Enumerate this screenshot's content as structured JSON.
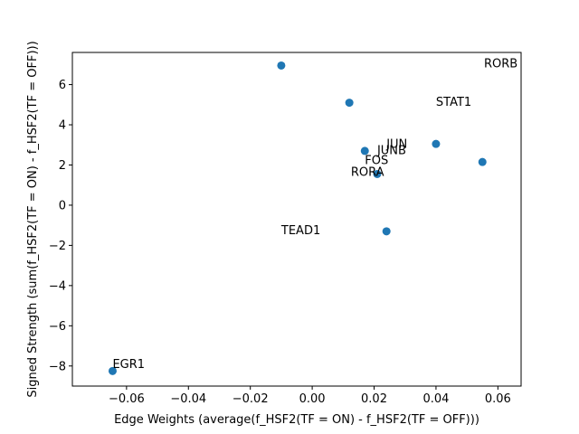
{
  "chart_data": {
    "type": "scatter",
    "title": "",
    "xlabel": "Edge Weights (average(f_HSF2(TF = ON) - f_HSF2(TF = OFF)))",
    "ylabel": "Signed Strength (sum(f_HSF2(TF = ON) - f_HSF2(TF = OFF)))",
    "xlim": [
      -0.0775,
      0.0675
    ],
    "ylim": [
      -9.0,
      7.6
    ],
    "xticks": [
      -0.06,
      -0.04,
      -0.02,
      0.0,
      0.02,
      0.04,
      0.06
    ],
    "xtick_labels": [
      "−0.06",
      "−0.04",
      "−0.02",
      "0.00",
      "0.02",
      "0.04",
      "0.06"
    ],
    "yticks": [
      -8,
      -6,
      -4,
      -2,
      0,
      2,
      4,
      6
    ],
    "ytick_labels": [
      "−8",
      "−6",
      "−4",
      "−2",
      "0",
      "2",
      "4",
      "6"
    ],
    "grid": false,
    "marker_color": "#1f77b4",
    "points": [
      {
        "x": -0.01,
        "y": 6.95
      },
      {
        "x": 0.012,
        "y": 5.1
      },
      {
        "x": 0.017,
        "y": 2.7
      },
      {
        "x": 0.021,
        "y": 1.55
      },
      {
        "x": 0.024,
        "y": -1.3
      },
      {
        "x": 0.04,
        "y": 3.05
      },
      {
        "x": 0.055,
        "y": 2.15
      },
      {
        "x": -0.0645,
        "y": -8.25
      }
    ],
    "annotations": [
      {
        "text": "RORB",
        "x": 0.0555,
        "y": 6.85
      },
      {
        "text": "STAT1",
        "x": 0.04,
        "y": 4.95
      },
      {
        "text": "JUN",
        "x": 0.024,
        "y": 2.85
      },
      {
        "text": "JUNB",
        "x": 0.021,
        "y": 2.55
      },
      {
        "text": "FOS",
        "x": 0.017,
        "y": 2.05
      },
      {
        "text": "RORA",
        "x": 0.0125,
        "y": 1.45
      },
      {
        "text": "TEAD1",
        "x": -0.01,
        "y": -1.45
      },
      {
        "text": "EGR1",
        "x": -0.0645,
        "y": -8.1
      }
    ]
  }
}
